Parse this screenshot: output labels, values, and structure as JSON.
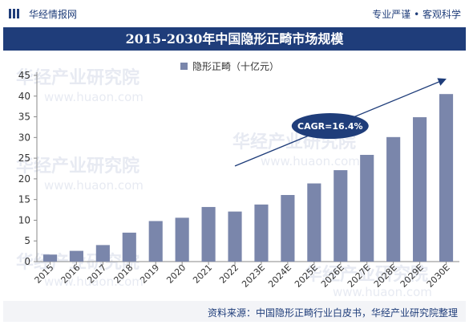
{
  "header": {
    "brand": "华经情报网",
    "slogan": "专业严谨 • 客观科学"
  },
  "footer": {
    "source": "资料来源：中国隐形正畸行业白皮书，华经产业研究院整理"
  },
  "watermark": {
    "text": "华经产业研究院",
    "url": "www.huaon.com"
  },
  "colors": {
    "bar": "#7a86ab",
    "accent": "#1f3d7a"
  },
  "chart_data": {
    "type": "bar",
    "title": "2015-2030年中国隐形正畸市场规模",
    "categories": [
      "2015",
      "2016",
      "2017",
      "2018",
      "2019",
      "2020",
      "2021",
      "2022",
      "2023E",
      "2024E",
      "2025E",
      "2026E",
      "2027E",
      "2028E",
      "2029E",
      "2030E"
    ],
    "series": [
      {
        "name": "隐形正畸（十亿元）",
        "values": [
          1.7,
          2.6,
          4.0,
          7.0,
          9.8,
          10.6,
          13.2,
          12.1,
          13.8,
          16.1,
          18.9,
          22.1,
          25.8,
          30.1,
          34.9,
          40.5
        ]
      }
    ],
    "ylim": [
      0,
      45
    ],
    "yticks": [
      0,
      5,
      10,
      15,
      20,
      25,
      30,
      35,
      40,
      45
    ],
    "grid": false,
    "legend": "top",
    "annotation": {
      "label": "CAGR=16.4%",
      "from_category": "2022",
      "to_category": "2030E"
    }
  }
}
